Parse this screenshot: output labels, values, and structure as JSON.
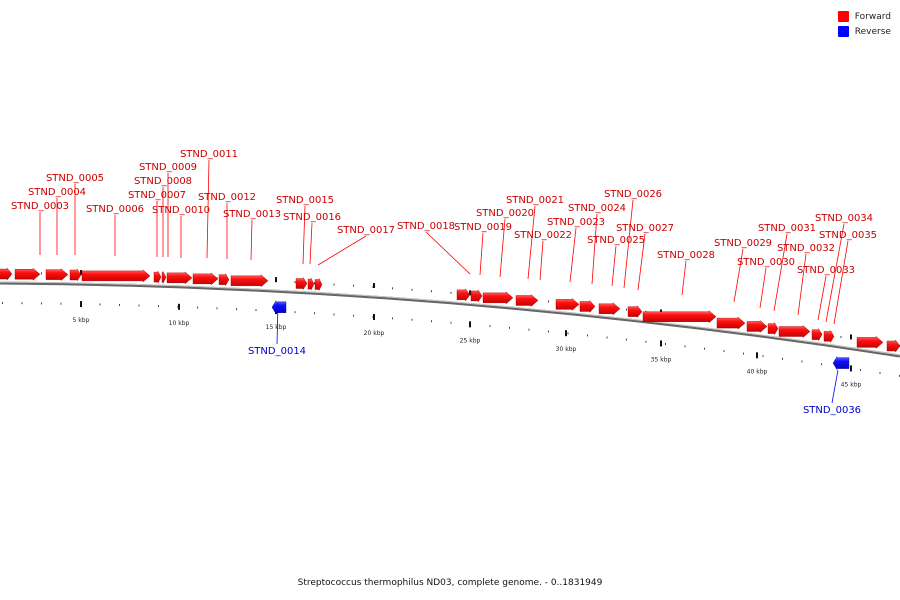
{
  "legend": {
    "forward": {
      "label": "Forward",
      "color": "#ff0000"
    },
    "reverse": {
      "label": "Reverse",
      "color": "#0000ff"
    }
  },
  "caption": "Streptococcus thermophilus ND03, complete genome. - 0..1831949",
  "scale_labels": [
    "5 kbp",
    "10 kbp",
    "15 kbp",
    "20 kbp",
    "25 kbp",
    "30 kbp",
    "35 kbp",
    "40 kbp",
    "45 kbp"
  ],
  "genes": [
    {
      "name": "STND_0003",
      "strand": "forward"
    },
    {
      "name": "STND_0004",
      "strand": "forward"
    },
    {
      "name": "STND_0005",
      "strand": "forward"
    },
    {
      "name": "STND_0006",
      "strand": "forward"
    },
    {
      "name": "STND_0007",
      "strand": "forward"
    },
    {
      "name": "STND_0008",
      "strand": "forward"
    },
    {
      "name": "STND_0009",
      "strand": "forward"
    },
    {
      "name": "STND_0010",
      "strand": "forward"
    },
    {
      "name": "STND_0011",
      "strand": "forward"
    },
    {
      "name": "STND_0012",
      "strand": "forward"
    },
    {
      "name": "STND_0013",
      "strand": "forward"
    },
    {
      "name": "STND_0014",
      "strand": "reverse"
    },
    {
      "name": "STND_0015",
      "strand": "forward"
    },
    {
      "name": "STND_0016",
      "strand": "forward"
    },
    {
      "name": "STND_0017",
      "strand": "forward"
    },
    {
      "name": "STND_0018",
      "strand": "forward"
    },
    {
      "name": "STND_0019",
      "strand": "forward"
    },
    {
      "name": "STND_0020",
      "strand": "forward"
    },
    {
      "name": "STND_0021",
      "strand": "forward"
    },
    {
      "name": "STND_0022",
      "strand": "forward"
    },
    {
      "name": "STND_0023",
      "strand": "forward"
    },
    {
      "name": "STND_0024",
      "strand": "forward"
    },
    {
      "name": "STND_0025",
      "strand": "forward"
    },
    {
      "name": "STND_0026",
      "strand": "forward"
    },
    {
      "name": "STND_0027",
      "strand": "forward"
    },
    {
      "name": "STND_0028",
      "strand": "forward"
    },
    {
      "name": "STND_0029",
      "strand": "forward"
    },
    {
      "name": "STND_0030",
      "strand": "forward"
    },
    {
      "name": "STND_0031",
      "strand": "forward"
    },
    {
      "name": "STND_0032",
      "strand": "forward"
    },
    {
      "name": "STND_0033",
      "strand": "forward"
    },
    {
      "name": "STND_0034",
      "strand": "forward"
    },
    {
      "name": "STND_0035",
      "strand": "forward"
    },
    {
      "name": "STND_0036",
      "strand": "reverse"
    }
  ]
}
